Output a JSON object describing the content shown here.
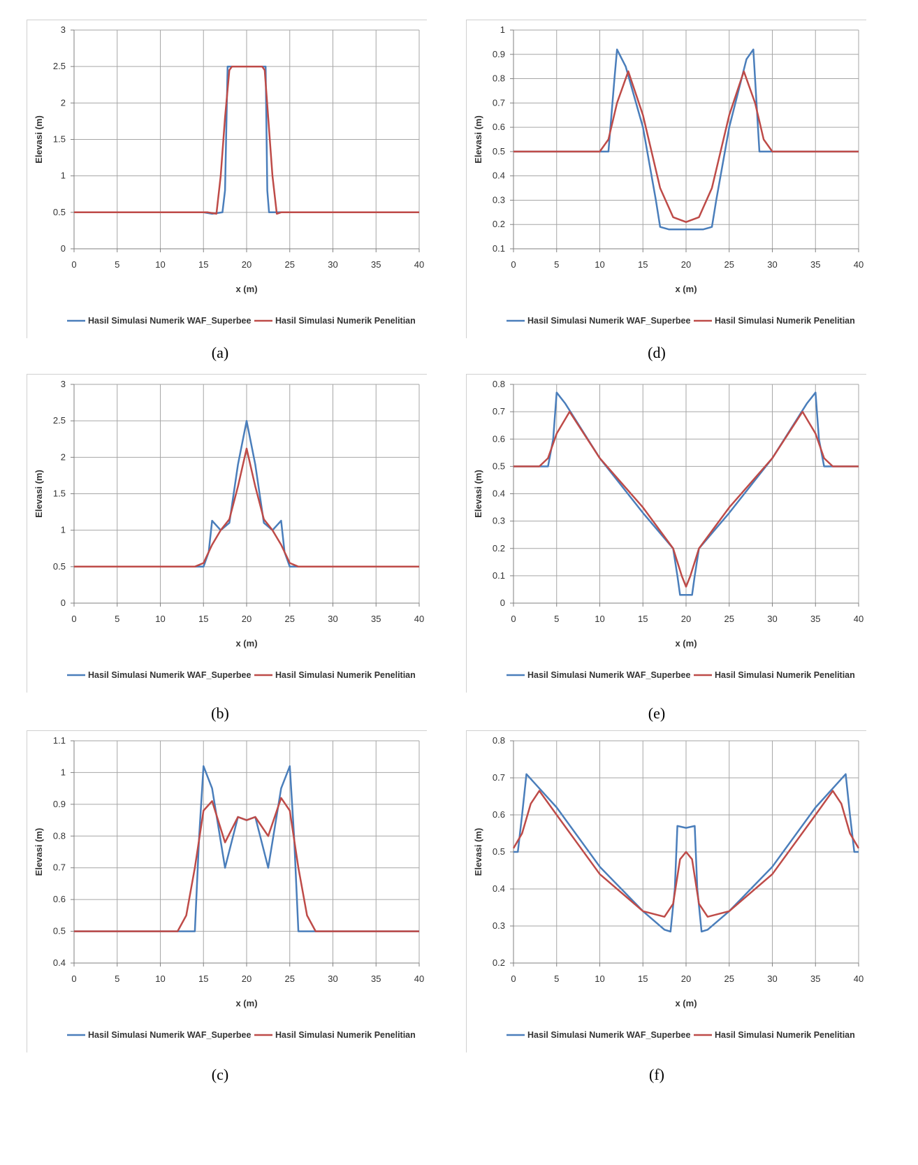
{
  "chart_data": [
    {
      "id": "a",
      "caption": "(a)",
      "type": "line",
      "xlabel": "x (m)",
      "ylabel": "Elevasi (m)",
      "xlim": [
        0,
        40
      ],
      "ylim": [
        0,
        3
      ],
      "xticks": [
        "0",
        "5",
        "10",
        "15",
        "20",
        "25",
        "30",
        "35",
        "40"
      ],
      "yticks": [
        "0",
        "0.5",
        "1",
        "1.5",
        "2",
        "2.5",
        "3"
      ],
      "grid": true,
      "legend": "bottom",
      "series": [
        {
          "name": "Hasil Simulasi Numerik WAF_Superbee",
          "color": "#4a7ebb",
          "x": [
            0,
            15,
            16,
            17.2,
            17.5,
            17.8,
            18,
            22,
            22.2,
            22.4,
            22.6,
            23,
            24,
            40
          ],
          "y": [
            0.5,
            0.5,
            0.48,
            0.5,
            0.8,
            2.5,
            2.5,
            2.5,
            2.5,
            0.8,
            0.5,
            0.5,
            0.5,
            0.5
          ]
        },
        {
          "name": "Hasil Simulasi Numerik Penelitian",
          "color": "#be4b48",
          "x": [
            0,
            15.5,
            16.5,
            17,
            17.5,
            18,
            18.3,
            21.8,
            22.1,
            22.5,
            23,
            23.5,
            24,
            40
          ],
          "y": [
            0.5,
            0.5,
            0.48,
            1.0,
            1.8,
            2.45,
            2.5,
            2.5,
            2.45,
            1.8,
            1.0,
            0.48,
            0.5,
            0.5
          ]
        }
      ]
    },
    {
      "id": "b",
      "caption": "(b)",
      "type": "line",
      "xlabel": "x (m)",
      "ylabel": "Elevasi (m)",
      "xlim": [
        0,
        40
      ],
      "ylim": [
        0,
        3
      ],
      "xticks": [
        "0",
        "5",
        "10",
        "15",
        "20",
        "25",
        "30",
        "35",
        "40"
      ],
      "yticks": [
        "0",
        "0.5",
        "1",
        "1.5",
        "2",
        "2.5",
        "3"
      ],
      "grid": true,
      "legend": "bottom",
      "series": [
        {
          "name": "Hasil Simulasi Numerik WAF_Superbee",
          "color": "#4a7ebb",
          "x": [
            0,
            15,
            15.6,
            16,
            17,
            18,
            19,
            20,
            21,
            22,
            23,
            24,
            24.4,
            25,
            40
          ],
          "y": [
            0.5,
            0.5,
            0.7,
            1.13,
            1.0,
            1.1,
            1.9,
            2.5,
            1.9,
            1.1,
            1.0,
            1.13,
            0.7,
            0.5,
            0.5
          ]
        },
        {
          "name": "Hasil Simulasi Numerik Penelitian",
          "color": "#be4b48",
          "x": [
            0,
            14,
            15,
            16,
            17,
            18,
            19,
            20,
            21,
            22,
            23,
            24,
            25,
            26,
            40
          ],
          "y": [
            0.5,
            0.5,
            0.55,
            0.8,
            1.0,
            1.15,
            1.6,
            2.12,
            1.6,
            1.15,
            1.0,
            0.8,
            0.55,
            0.5,
            0.5
          ]
        }
      ]
    },
    {
      "id": "c",
      "caption": "(c)",
      "type": "line",
      "xlabel": "x (m)",
      "ylabel": "Elevasi (m)",
      "xlim": [
        0,
        40
      ],
      "ylim": [
        0.4,
        1.1
      ],
      "xticks": [
        "0",
        "5",
        "10",
        "15",
        "20",
        "25",
        "30",
        "35",
        "40"
      ],
      "yticks": [
        "0.4",
        "0.5",
        "0.6",
        "0.7",
        "0.8",
        "0.9",
        "1",
        "1.1"
      ],
      "grid": true,
      "legend": "bottom",
      "series": [
        {
          "name": "Hasil Simulasi Numerik WAF_Superbee",
          "color": "#4a7ebb",
          "x": [
            0,
            14,
            14.5,
            15,
            16,
            17.5,
            19,
            20,
            21,
            22.5,
            24,
            25,
            25.5,
            26,
            40
          ],
          "y": [
            0.5,
            0.5,
            0.8,
            1.02,
            0.95,
            0.7,
            0.86,
            0.85,
            0.86,
            0.7,
            0.95,
            1.02,
            0.8,
            0.5,
            0.5
          ]
        },
        {
          "name": "Hasil Simulasi Numerik Penelitian",
          "color": "#be4b48",
          "x": [
            0,
            12,
            13,
            14,
            15,
            16,
            17.5,
            19,
            20,
            21,
            22.5,
            24,
            25,
            26,
            27,
            28,
            40
          ],
          "y": [
            0.5,
            0.5,
            0.55,
            0.7,
            0.88,
            0.91,
            0.78,
            0.86,
            0.85,
            0.86,
            0.8,
            0.92,
            0.88,
            0.7,
            0.55,
            0.5,
            0.5
          ]
        }
      ]
    },
    {
      "id": "d",
      "caption": "(d)",
      "type": "line",
      "xlabel": "x (m)",
      "ylabel": "Elevasi (m)",
      "xlim": [
        0,
        40
      ],
      "ylim": [
        0.1,
        1
      ],
      "xticks": [
        "0",
        "5",
        "10",
        "15",
        "20",
        "25",
        "30",
        "35",
        "40"
      ],
      "yticks": [
        "0.1",
        "0.2",
        "0.3",
        "0.4",
        "0.5",
        "0.6",
        "0.7",
        "0.8",
        "0.9",
        "1"
      ],
      "grid": true,
      "legend": "bottom",
      "series": [
        {
          "name": "Hasil Simulasi Numerik WAF_Superbee",
          "color": "#4a7ebb",
          "x": [
            0,
            11,
            11.7,
            12,
            13,
            15,
            16.5,
            17,
            18,
            20,
            22,
            23,
            23.5,
            25,
            27,
            27.8,
            28.5,
            30,
            40
          ],
          "y": [
            0.5,
            0.5,
            0.8,
            0.92,
            0.85,
            0.6,
            0.3,
            0.19,
            0.18,
            0.18,
            0.18,
            0.19,
            0.3,
            0.6,
            0.88,
            0.92,
            0.5,
            0.5,
            0.5
          ]
        },
        {
          "name": "Hasil Simulasi Numerik Penelitian",
          "color": "#be4b48",
          "x": [
            0,
            9,
            10,
            11,
            12,
            13.3,
            15,
            17,
            18.5,
            20,
            21.5,
            23,
            25,
            26.7,
            28,
            29,
            30,
            31,
            40
          ],
          "y": [
            0.5,
            0.5,
            0.5,
            0.55,
            0.7,
            0.83,
            0.65,
            0.35,
            0.23,
            0.21,
            0.23,
            0.35,
            0.65,
            0.83,
            0.7,
            0.55,
            0.5,
            0.5,
            0.5
          ]
        }
      ]
    },
    {
      "id": "e",
      "caption": "(e)",
      "type": "line",
      "xlabel": "x (m)",
      "ylabel": "Elevasi (m)",
      "xlim": [
        0,
        40
      ],
      "ylim": [
        0,
        0.8
      ],
      "xticks": [
        "0",
        "5",
        "10",
        "15",
        "20",
        "25",
        "30",
        "35",
        "40"
      ],
      "yticks": [
        "0",
        "0.1",
        "0.2",
        "0.3",
        "0.4",
        "0.5",
        "0.6",
        "0.7",
        "0.8"
      ],
      "grid": true,
      "legend": "bottom",
      "series": [
        {
          "name": "Hasil Simulasi Numerik WAF_Superbee",
          "color": "#4a7ebb",
          "x": [
            0,
            4,
            4.6,
            5,
            6,
            10,
            15,
            18.5,
            19,
            19.3,
            20,
            20.7,
            21,
            21.5,
            25,
            30,
            34,
            35,
            35.4,
            36,
            40
          ],
          "y": [
            0.5,
            0.5,
            0.6,
            0.77,
            0.73,
            0.53,
            0.33,
            0.2,
            0.1,
            0.03,
            0.03,
            0.03,
            0.1,
            0.2,
            0.33,
            0.53,
            0.73,
            0.77,
            0.6,
            0.5,
            0.5
          ]
        },
        {
          "name": "Hasil Simulasi Numerik Penelitian",
          "color": "#be4b48",
          "x": [
            0,
            3,
            4,
            5,
            6.5,
            10,
            15,
            18.5,
            19.5,
            20,
            20.5,
            21.5,
            25,
            30,
            33.5,
            35,
            36,
            37,
            40
          ],
          "y": [
            0.5,
            0.5,
            0.53,
            0.62,
            0.7,
            0.53,
            0.35,
            0.2,
            0.1,
            0.06,
            0.1,
            0.2,
            0.35,
            0.53,
            0.7,
            0.62,
            0.53,
            0.5,
            0.5
          ]
        }
      ]
    },
    {
      "id": "f",
      "caption": "(f)",
      "type": "line",
      "xlabel": "x (m)",
      "ylabel": "Elevasi (m)",
      "xlim": [
        0,
        40
      ],
      "ylim": [
        0.2,
        0.8
      ],
      "xticks": [
        "0",
        "5",
        "10",
        "15",
        "20",
        "25",
        "30",
        "35",
        "40"
      ],
      "yticks": [
        "0.2",
        "0.3",
        "0.4",
        "0.5",
        "0.6",
        "0.7",
        "0.8"
      ],
      "grid": true,
      "legend": "bottom",
      "series": [
        {
          "name": "Hasil Simulasi Numerik WAF_Superbee",
          "color": "#4a7ebb",
          "x": [
            0,
            0.5,
            1,
            1.5,
            5,
            10,
            15,
            17.5,
            18.2,
            18.7,
            19,
            20,
            21,
            21.3,
            21.8,
            22.5,
            25,
            30,
            35,
            38.5,
            39,
            39.5,
            40
          ],
          "y": [
            0.5,
            0.5,
            0.6,
            0.71,
            0.62,
            0.46,
            0.34,
            0.29,
            0.285,
            0.4,
            0.57,
            0.565,
            0.57,
            0.4,
            0.285,
            0.29,
            0.34,
            0.46,
            0.62,
            0.71,
            0.6,
            0.5,
            0.5
          ]
        },
        {
          "name": "Hasil Simulasi Numerik Penelitian",
          "color": "#be4b48",
          "x": [
            0,
            1,
            2,
            3,
            5,
            10,
            15,
            17.5,
            18.5,
            19.3,
            20,
            20.7,
            21.5,
            22.5,
            25,
            30,
            35,
            37,
            38,
            39,
            40
          ],
          "y": [
            0.51,
            0.55,
            0.63,
            0.665,
            0.6,
            0.44,
            0.34,
            0.325,
            0.36,
            0.48,
            0.5,
            0.48,
            0.36,
            0.325,
            0.34,
            0.44,
            0.6,
            0.665,
            0.63,
            0.55,
            0.51
          ]
        }
      ]
    }
  ]
}
